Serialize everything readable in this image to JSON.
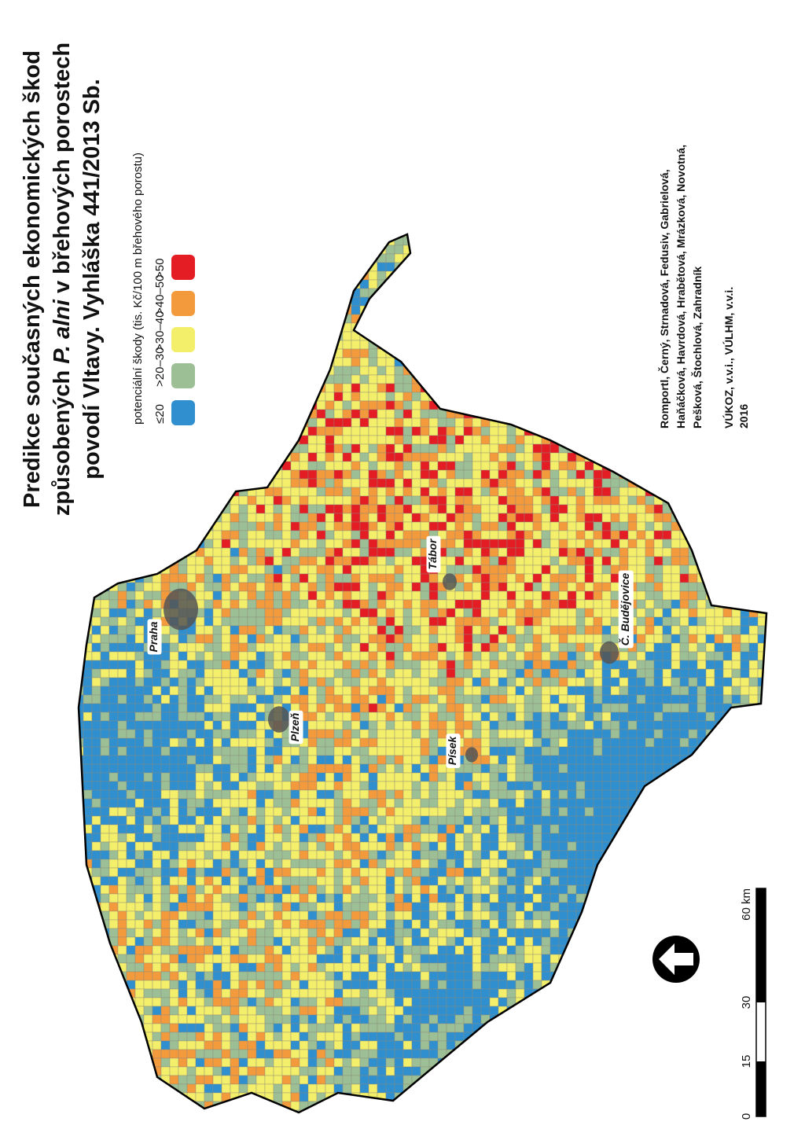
{
  "title": {
    "lines": [
      [
        {
          "text": "Predikce současných ekonomických škod"
        }
      ],
      [
        {
          "text": "způsobených "
        },
        {
          "text": "P. alni",
          "italic": true
        },
        {
          "text": " v břehových porostech"
        }
      ],
      [
        {
          "text": "povodí Vltavy. Vyhláška 441/2013 Sb."
        }
      ]
    ]
  },
  "legend": {
    "title": "potenciální škody (tis. Kč/100 m břehového porostu)",
    "items": [
      {
        "label": "≤20",
        "color": "#2f8fcf"
      },
      {
        "label": ">20–30",
        "color": "#9dbf95"
      },
      {
        "label": ">30–40",
        "color": "#f3ef6a"
      },
      {
        "label": ">40–50",
        "color": "#f39a3c"
      },
      {
        "label": ">50",
        "color": "#e41c24"
      }
    ]
  },
  "cities": [
    "Praha",
    "Plzeň",
    "Písek",
    "Tábor",
    "Č. Budějovice"
  ],
  "authors": [
    "Romportl, Černý, Strnadová, Fedusiv, Gabrielová,",
    "Haňáčková, Havrdová, Hrabětová, Mrázková, Novotná,",
    "Pešková, Štochlová, Zahradník"
  ],
  "institutions": [
    "VÚKOZ, v.v.i., VÚLHM, v.v.i.",
    "2016"
  ],
  "scale": {
    "labels": [
      "0",
      "15",
      "30",
      "60 km"
    ]
  }
}
